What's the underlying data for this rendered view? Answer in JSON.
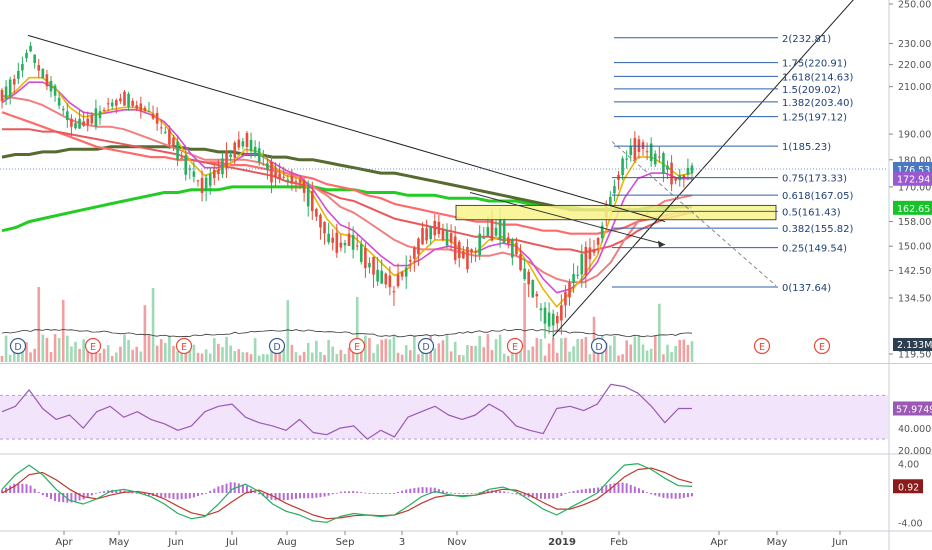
{
  "chart_data": [
    {
      "type": "line",
      "panel": "price",
      "xlabel": "",
      "ylabel": "",
      "x_ticks": [
        "Apr",
        "May",
        "Jun",
        "Jul",
        "Aug",
        "Sep",
        "3",
        "Nov",
        "2019",
        "Feb",
        "Apr",
        "May",
        "Jun"
      ],
      "y_ticks": [
        "250.00",
        "230.00",
        "220.00",
        "210.00",
        "190.00",
        "180.00",
        "170.00",
        "158.00",
        "150.00",
        "142.50",
        "134.50",
        "119.50"
      ],
      "ylim": [
        119.5,
        250
      ],
      "scale": "log",
      "grid": false,
      "fib_levels": [
        {
          "label": "2(232.81)",
          "value": 232.81
        },
        {
          "label": "1.75(220.91)",
          "value": 220.91
        },
        {
          "label": "1.618(214.63)",
          "value": 214.63
        },
        {
          "label": "1.5(209.02)",
          "value": 209.02
        },
        {
          "label": "1.382(203.40)",
          "value": 203.4
        },
        {
          "label": "1.25(197.12)",
          "value": 197.12
        },
        {
          "label": "1(185.23)",
          "value": 185.23
        },
        {
          "label": "0.75(173.33)",
          "value": 173.33
        },
        {
          "label": "0.618(167.05)",
          "value": 167.05
        },
        {
          "label": "0.5(161.43)",
          "value": 161.43
        },
        {
          "label": "0.382(155.82)",
          "value": 155.82
        },
        {
          "label": "0.25(149.54)",
          "value": 149.54
        },
        {
          "label": "0(137.64)",
          "value": 137.64
        }
      ],
      "price_labels": [
        {
          "text": "176.53",
          "value": 176.53,
          "color": "#4a78c2"
        },
        {
          "text": "172.94",
          "value": 172.94,
          "color": "#9b59d0"
        },
        {
          "text": "162.65",
          "value": 162.65,
          "color": "#16c42a"
        }
      ],
      "volume_labels": [
        {
          "text": "2.133M",
          "color": "#2c3e50"
        }
      ],
      "event_markers": [
        "D",
        "E",
        "E",
        "D",
        "E",
        "D",
        "E",
        "D",
        "E",
        "E"
      ],
      "series": [
        {
          "role": "price",
          "color": "#27ae60",
          "trend": [
            205,
            212,
            228,
            216,
            207,
            195,
            193,
            197,
            203,
            205,
            201,
            199,
            192,
            183,
            175,
            170,
            176,
            182,
            188,
            183,
            175,
            172,
            172,
            164,
            154,
            150,
            152,
            145,
            141,
            137,
            144,
            152,
            156,
            153,
            146,
            148,
            155,
            156,
            148,
            139,
            131,
            127,
            138,
            145,
            150,
            166,
            180,
            186,
            183,
            178,
            172,
            176
          ]
        },
        {
          "role": "ema-fast",
          "color": "#e6b800",
          "trend": [
            204,
            208,
            214,
            214,
            209,
            201,
            197,
            198,
            200,
            201,
            201,
            199,
            194,
            187,
            179,
            174,
            176,
            179,
            184,
            183,
            178,
            174,
            173,
            167,
            159,
            154,
            153,
            149,
            145,
            141,
            143,
            148,
            152,
            152,
            149,
            148,
            152,
            153,
            150,
            144,
            137,
            132,
            136,
            141,
            147,
            160,
            173,
            181,
            181,
            178,
            174,
            175
          ]
        },
        {
          "role": "ema-mid",
          "color": "#d54bd5",
          "trend": [
            203,
            207,
            212,
            212,
            209,
            203,
            199,
            198,
            199,
            200,
            200,
            198,
            195,
            189,
            182,
            177,
            177,
            179,
            182,
            182,
            179,
            176,
            174,
            169,
            162,
            157,
            155,
            151,
            147,
            144,
            144,
            146,
            149,
            150,
            149,
            148,
            150,
            151,
            150,
            146,
            140,
            136,
            137,
            140,
            145,
            155,
            166,
            173,
            175,
            175,
            173,
            173
          ]
        },
        {
          "role": "sma-50",
          "color": "#f08080",
          "trend": [
            206,
            205,
            204,
            202,
            199,
            196,
            194,
            193,
            193,
            192,
            190,
            188,
            186,
            184,
            182,
            180,
            180,
            180,
            180,
            179,
            177,
            175,
            173,
            170,
            167,
            163,
            161,
            158,
            155,
            152,
            150,
            149,
            149,
            149,
            148,
            147,
            147,
            148,
            147,
            145,
            142,
            140,
            139,
            139,
            141,
            145,
            152,
            158,
            162,
            165,
            166,
            167
          ]
        },
        {
          "role": "sma-100",
          "color": "#e85a5a",
          "trend": [
            192,
            192,
            192,
            191,
            191,
            190,
            189,
            188,
            187,
            186,
            185,
            184,
            183,
            182,
            180,
            179,
            178,
            177,
            176,
            175,
            174,
            172,
            171,
            170,
            168,
            166,
            165,
            163,
            161,
            159,
            158,
            157,
            156,
            155,
            154,
            153,
            153,
            152,
            152,
            151,
            150,
            149,
            149,
            148,
            149,
            150,
            152,
            155,
            157,
            159,
            160,
            161
          ]
        },
        {
          "role": "sma-150",
          "color": "#ff6b6b",
          "trend": [
            199,
            197,
            195,
            193,
            191,
            189,
            187,
            185,
            184,
            183,
            182,
            181,
            181,
            180,
            180,
            179,
            179,
            178,
            178,
            177,
            176,
            175,
            174,
            173,
            171,
            170,
            169,
            167,
            166,
            164,
            163,
            162,
            161,
            160,
            159,
            158,
            158,
            157,
            157,
            156,
            155,
            155,
            154,
            154,
            154,
            155,
            156,
            158,
            159,
            160,
            161,
            161
          ]
        },
        {
          "role": "sma-200",
          "color": "#556b2f",
          "trend": [
            181,
            182,
            182,
            183,
            183,
            184,
            184,
            184,
            185,
            185,
            185,
            185,
            185,
            185,
            184,
            184,
            183,
            183,
            182,
            182,
            181,
            181,
            180,
            180,
            179,
            178,
            177,
            176,
            175,
            175,
            174,
            173,
            172,
            171,
            170,
            169,
            168,
            167,
            166,
            165,
            164,
            163,
            162,
            162,
            162,
            162,
            162,
            162,
            163,
            163,
            163,
            163
          ]
        },
        {
          "role": "sma-200-green",
          "color": "#22cc22",
          "trend": [
            155,
            156,
            158,
            159,
            160,
            161,
            162,
            163,
            164,
            165,
            166,
            167,
            168,
            168,
            169,
            169,
            169,
            170,
            170,
            170,
            170,
            170,
            170,
            170,
            169,
            169,
            169,
            168,
            168,
            168,
            167,
            167,
            167,
            166,
            166,
            166,
            165,
            165,
            165,
            164,
            164,
            163,
            163,
            162,
            162,
            162,
            162,
            162,
            162,
            162,
            163,
            163
          ]
        }
      ]
    },
    {
      "type": "line",
      "panel": "rsi",
      "y_ticks": [
        "57.9749",
        "40.0000",
        "20.0000"
      ],
      "ylim": [
        20,
        95
      ],
      "band": [
        30,
        70
      ],
      "last_value_label": "57.9749",
      "series": [
        {
          "role": "rsi",
          "color": "#9b59b6",
          "trend": [
            55,
            60,
            75,
            58,
            48,
            52,
            40,
            55,
            60,
            50,
            55,
            48,
            44,
            38,
            42,
            55,
            60,
            62,
            50,
            45,
            42,
            38,
            48,
            36,
            34,
            40,
            42,
            30,
            38,
            32,
            50,
            55,
            60,
            52,
            48,
            52,
            62,
            55,
            42,
            38,
            35,
            58,
            60,
            56,
            62,
            80,
            78,
            72,
            60,
            45,
            58,
            58
          ]
        }
      ]
    },
    {
      "type": "bar",
      "panel": "macd",
      "y_ticks": [
        "4.00",
        "0.92",
        "-4.00"
      ],
      "ylim": [
        -4.5,
        4.5
      ],
      "last_value_label": "0.92",
      "series": [
        {
          "role": "macd",
          "color": "#27ae60",
          "trend": [
            0.5,
            2.5,
            3.8,
            2.5,
            0.5,
            -1.0,
            -1.5,
            -0.8,
            0.2,
            0.5,
            0.1,
            -0.5,
            -1.5,
            -2.8,
            -3.5,
            -3.2,
            -1.5,
            0.5,
            1.2,
            0.2,
            -1.5,
            -2.5,
            -3.0,
            -3.8,
            -4.0,
            -3.2,
            -2.8,
            -3.0,
            -3.2,
            -3.0,
            -1.8,
            -0.5,
            0.2,
            -0.2,
            -0.5,
            -0.3,
            0.5,
            0.8,
            0.2,
            -1.0,
            -2.2,
            -3.0,
            -2.0,
            -1.0,
            0.0,
            2.0,
            3.8,
            4.0,
            3.2,
            2.0,
            1.0,
            0.9
          ]
        },
        {
          "role": "signal",
          "color": "#c0392b",
          "trend": [
            0.0,
            1.0,
            2.5,
            2.8,
            1.8,
            0.5,
            -0.5,
            -0.8,
            -0.3,
            0.1,
            0.2,
            -0.1,
            -0.8,
            -1.8,
            -2.7,
            -3.1,
            -2.5,
            -1.2,
            0.0,
            0.4,
            -0.4,
            -1.4,
            -2.2,
            -3.0,
            -3.5,
            -3.4,
            -3.1,
            -3.0,
            -3.1,
            -3.0,
            -2.4,
            -1.4,
            -0.6,
            -0.3,
            -0.4,
            -0.3,
            0.1,
            0.5,
            0.4,
            -0.3,
            -1.3,
            -2.2,
            -2.2,
            -1.6,
            -0.8,
            0.6,
            2.2,
            3.2,
            3.4,
            2.8,
            1.9,
            1.4
          ]
        }
      ]
    }
  ]
}
